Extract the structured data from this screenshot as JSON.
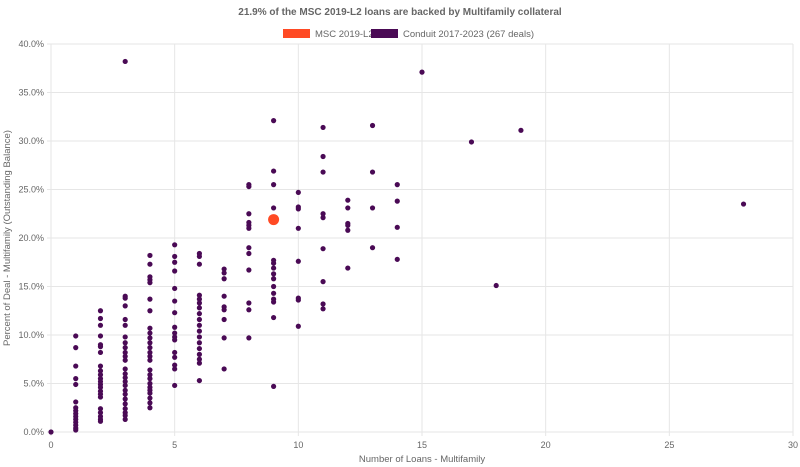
{
  "chart_data": {
    "type": "scatter",
    "title": "21.9% of the MSC 2019-L2 loans are backed by Multifamily collateral",
    "xlabel": "Number of Loans - Multifamily",
    "ylabel": "Percent of Deal - Multifamily (Outstanding Balance)",
    "xlim": [
      0,
      30
    ],
    "ylim": [
      0,
      40
    ],
    "xticks": [
      "0",
      "5",
      "10",
      "15",
      "20",
      "25",
      "30"
    ],
    "yticks": [
      "0.0%",
      "5.0%",
      "10.0%",
      "15.0%",
      "20.0%",
      "25.0%",
      "30.0%",
      "35.0%",
      "40.0%"
    ],
    "grid": true,
    "legend": "top",
    "series": [
      {
        "name": "MSC 2019-L2",
        "color": "#ff4a24",
        "points": [
          [
            9,
            21.9
          ]
        ]
      },
      {
        "name": "Conduit 2017-2023 (267 deals)",
        "color": "#4a0a55",
        "points": [
          [
            0,
            0
          ],
          [
            1,
            9.9
          ],
          [
            1,
            8.7
          ],
          [
            1,
            6.8
          ],
          [
            1,
            5.5
          ],
          [
            1,
            4.9
          ],
          [
            1,
            3.1
          ],
          [
            1,
            2.5
          ],
          [
            1,
            2.2
          ],
          [
            1,
            1.9
          ],
          [
            1,
            1.6
          ],
          [
            1,
            1.3
          ],
          [
            1,
            1.0
          ],
          [
            1,
            0.7
          ],
          [
            1,
            0.4
          ],
          [
            1,
            0.2
          ],
          [
            2,
            12.5
          ],
          [
            2,
            11.7
          ],
          [
            2,
            11.0
          ],
          [
            2,
            9.9
          ],
          [
            2,
            9.0
          ],
          [
            2,
            8.8
          ],
          [
            2,
            8.2
          ],
          [
            2,
            6.8
          ],
          [
            2,
            6.3
          ],
          [
            2,
            5.9
          ],
          [
            2,
            5.5
          ],
          [
            2,
            5.2
          ],
          [
            2,
            4.9
          ],
          [
            2,
            4.6
          ],
          [
            2,
            4.2
          ],
          [
            2,
            3.9
          ],
          [
            2,
            3.6
          ],
          [
            2,
            2.4
          ],
          [
            2,
            2.0
          ],
          [
            2,
            1.6
          ],
          [
            2,
            1.3
          ],
          [
            2,
            1.1
          ],
          [
            3,
            38.2
          ],
          [
            3,
            14.0
          ],
          [
            3,
            13.8
          ],
          [
            3,
            13.0
          ],
          [
            3,
            11.6
          ],
          [
            3,
            11.0
          ],
          [
            3,
            9.8
          ],
          [
            3,
            9.2
          ],
          [
            3,
            8.7
          ],
          [
            3,
            8.2
          ],
          [
            3,
            7.8
          ],
          [
            3,
            7.4
          ],
          [
            3,
            6.5
          ],
          [
            3,
            6.0
          ],
          [
            3,
            5.6
          ],
          [
            3,
            5.2
          ],
          [
            3,
            4.8
          ],
          [
            3,
            4.3
          ],
          [
            3,
            3.9
          ],
          [
            3,
            3.4
          ],
          [
            3,
            2.9
          ],
          [
            3,
            2.4
          ],
          [
            3,
            2.0
          ],
          [
            3,
            1.7
          ],
          [
            3,
            1.3
          ],
          [
            4,
            18.2
          ],
          [
            4,
            17.3
          ],
          [
            4,
            16.0
          ],
          [
            4,
            15.7
          ],
          [
            4,
            15.4
          ],
          [
            4,
            13.7
          ],
          [
            4,
            12.5
          ],
          [
            4,
            10.7
          ],
          [
            4,
            10.2
          ],
          [
            4,
            9.7
          ],
          [
            4,
            9.2
          ],
          [
            4,
            8.7
          ],
          [
            4,
            8.2
          ],
          [
            4,
            7.8
          ],
          [
            4,
            7.4
          ],
          [
            4,
            6.4
          ],
          [
            4,
            5.9
          ],
          [
            4,
            5.5
          ],
          [
            4,
            5.0
          ],
          [
            4,
            4.6
          ],
          [
            4,
            4.3
          ],
          [
            4,
            4.0
          ],
          [
            4,
            3.5
          ],
          [
            4,
            3.0
          ],
          [
            4,
            2.5
          ],
          [
            5,
            19.3
          ],
          [
            5,
            18.1
          ],
          [
            5,
            17.5
          ],
          [
            5,
            16.6
          ],
          [
            5,
            14.8
          ],
          [
            5,
            13.5
          ],
          [
            5,
            12.3
          ],
          [
            5,
            10.8
          ],
          [
            5,
            10.2
          ],
          [
            5,
            9.8
          ],
          [
            5,
            9.5
          ],
          [
            5,
            8.2
          ],
          [
            5,
            7.7
          ],
          [
            5,
            6.9
          ],
          [
            5,
            6.5
          ],
          [
            5,
            4.8
          ],
          [
            6,
            18.4
          ],
          [
            6,
            18.1
          ],
          [
            6,
            17.3
          ],
          [
            6,
            14.1
          ],
          [
            6,
            13.7
          ],
          [
            6,
            13.3
          ],
          [
            6,
            12.8
          ],
          [
            6,
            12.2
          ],
          [
            6,
            11.6
          ],
          [
            6,
            11.0
          ],
          [
            6,
            10.4
          ],
          [
            6,
            9.8
          ],
          [
            6,
            9.2
          ],
          [
            6,
            8.6
          ],
          [
            6,
            8.0
          ],
          [
            6,
            7.5
          ],
          [
            6,
            7.1
          ],
          [
            6,
            5.3
          ],
          [
            7,
            16.8
          ],
          [
            7,
            16.4
          ],
          [
            7,
            15.8
          ],
          [
            7,
            14.0
          ],
          [
            7,
            12.9
          ],
          [
            7,
            12.6
          ],
          [
            7,
            11.6
          ],
          [
            7,
            9.7
          ],
          [
            7,
            6.5
          ],
          [
            8,
            25.5
          ],
          [
            8,
            25.3
          ],
          [
            8,
            22.5
          ],
          [
            8,
            21.6
          ],
          [
            8,
            21.3
          ],
          [
            8,
            21.0
          ],
          [
            8,
            19.0
          ],
          [
            8,
            18.4
          ],
          [
            8,
            16.7
          ],
          [
            8,
            13.3
          ],
          [
            8,
            12.6
          ],
          [
            8,
            9.7
          ],
          [
            9,
            32.1
          ],
          [
            9,
            26.9
          ],
          [
            9,
            25.5
          ],
          [
            9,
            23.1
          ],
          [
            9,
            17.7
          ],
          [
            9,
            17.4
          ],
          [
            9,
            16.9
          ],
          [
            9,
            16.3
          ],
          [
            9,
            15.8
          ],
          [
            9,
            15.0
          ],
          [
            9,
            14.3
          ],
          [
            9,
            13.7
          ],
          [
            9,
            13.4
          ],
          [
            9,
            11.8
          ],
          [
            9,
            4.7
          ],
          [
            10,
            24.7
          ],
          [
            10,
            23.2
          ],
          [
            10,
            23.0
          ],
          [
            10,
            21.0
          ],
          [
            10,
            17.6
          ],
          [
            10,
            13.8
          ],
          [
            10,
            13.6
          ],
          [
            10,
            10.9
          ],
          [
            11,
            31.4
          ],
          [
            11,
            28.4
          ],
          [
            11,
            26.8
          ],
          [
            11,
            22.5
          ],
          [
            11,
            22.1
          ],
          [
            11,
            18.9
          ],
          [
            11,
            15.5
          ],
          [
            11,
            13.2
          ],
          [
            11,
            12.7
          ],
          [
            12,
            23.9
          ],
          [
            12,
            23.1
          ],
          [
            12,
            21.5
          ],
          [
            12,
            21.3
          ],
          [
            12,
            20.8
          ],
          [
            12,
            16.9
          ],
          [
            13,
            31.6
          ],
          [
            13,
            26.8
          ],
          [
            13,
            23.1
          ],
          [
            13,
            19.0
          ],
          [
            14,
            25.5
          ],
          [
            14,
            23.8
          ],
          [
            14,
            21.1
          ],
          [
            14,
            17.8
          ],
          [
            15,
            37.1
          ],
          [
            17,
            29.9
          ],
          [
            18,
            15.1
          ],
          [
            19,
            31.1
          ],
          [
            28,
            23.5
          ]
        ]
      }
    ]
  }
}
